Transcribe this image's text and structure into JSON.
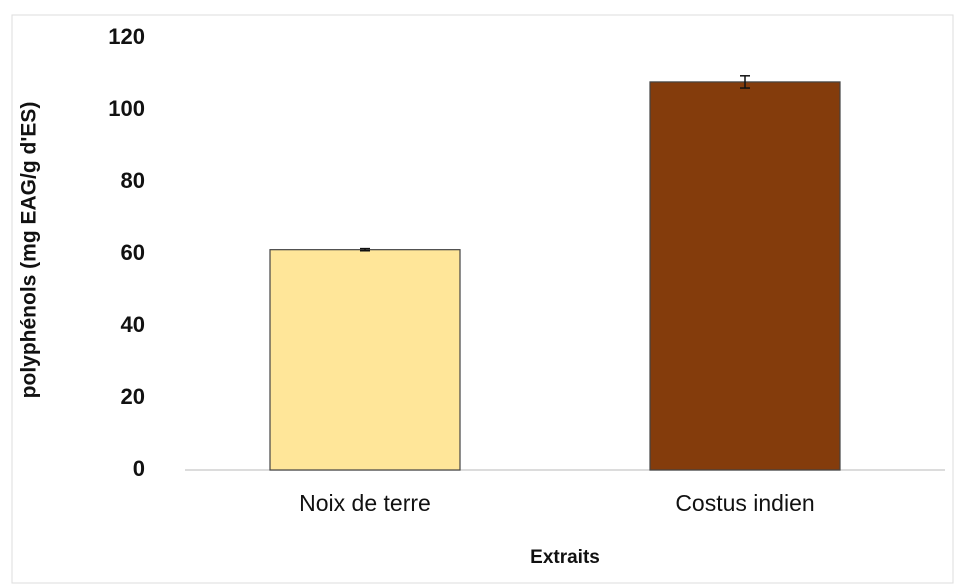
{
  "chart_data": {
    "type": "bar",
    "x_label": "Extraits",
    "y_label": "polyphénols (mg EAG/g d'ES)",
    "categories": [
      "Noix de terre",
      "Costus indien"
    ],
    "values": [
      61.2,
      107.8
    ],
    "errors": [
      0.3,
      1.7
    ],
    "colors": [
      "#ffe699",
      "#843c0c"
    ],
    "ylim": [
      0,
      120
    ],
    "yticks": [
      0,
      20,
      40,
      60,
      80,
      100,
      120
    ],
    "grid": false
  }
}
